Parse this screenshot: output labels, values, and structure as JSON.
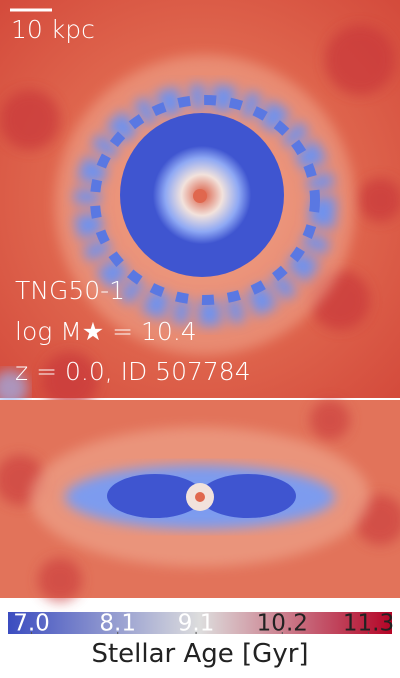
{
  "scale_bar": {
    "label": "10 kpc"
  },
  "info": {
    "simulation": "TNG50-1",
    "mass": "log M★ = 10.4",
    "snapshot": "z = 0.0, ID 507784"
  },
  "colorbar": {
    "label": "Stellar Age [Gyr]",
    "xlim": [
      6.7,
      11.6
    ],
    "xticks": [
      {
        "value": 7.0,
        "label": "7.0"
      },
      {
        "value": 8.1,
        "label": "8.1"
      },
      {
        "value": 9.1,
        "label": "9.1"
      },
      {
        "value": 10.2,
        "label": "10.2"
      },
      {
        "value": 11.3,
        "label": "11.3"
      }
    ],
    "colors": [
      "#3b4cc0",
      "#dddddd",
      "#b40426"
    ]
  }
}
